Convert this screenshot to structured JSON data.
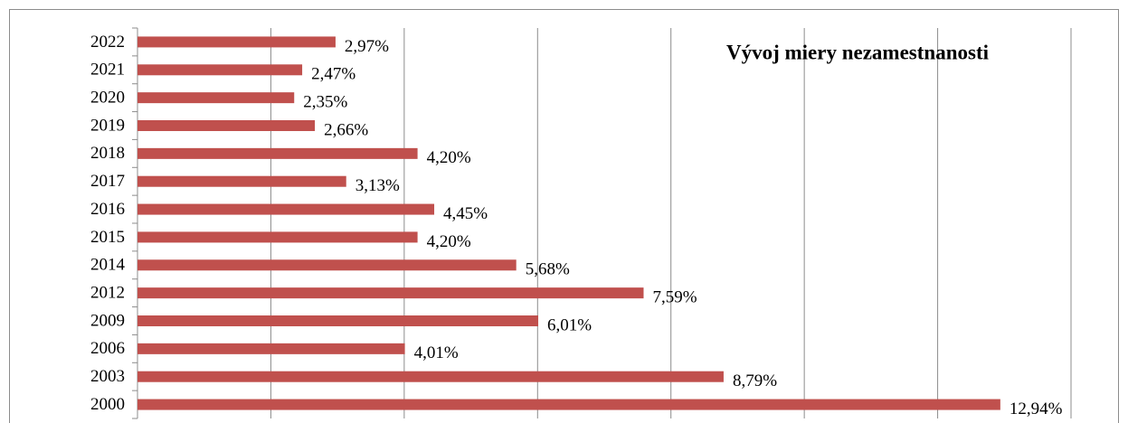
{
  "chart_data": {
    "type": "bar",
    "orientation": "horizontal",
    "title": "Vývoj miery nezamestnanosti",
    "categories": [
      "2022",
      "2021",
      "2020",
      "2019",
      "2018",
      "2017",
      "2016",
      "2015",
      "2014",
      "2012",
      "2009",
      "2006",
      "2003",
      "2000"
    ],
    "values": [
      2.97,
      2.47,
      2.35,
      2.66,
      4.2,
      3.13,
      4.45,
      4.2,
      5.68,
      7.59,
      6.01,
      4.01,
      8.79,
      12.94
    ],
    "value_labels": [
      "2,97%",
      "2,47%",
      "2,35%",
      "2,66%",
      "4,20%",
      "3,13%",
      "4,45%",
      "4,20%",
      "5,68%",
      "7,59%",
      "6,01%",
      "4,01%",
      "8,79%",
      "12,94%"
    ],
    "color": "#c0504d",
    "xlim": [
      0,
      14
    ],
    "xticks": [
      0,
      2,
      4,
      6,
      8,
      10,
      12,
      14
    ],
    "grid": true
  }
}
